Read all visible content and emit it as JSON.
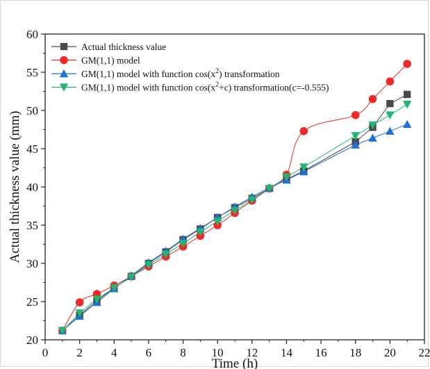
{
  "chart_data": {
    "type": "line",
    "xlabel": "Time (h)",
    "ylabel": "Actual thickness value (mm)",
    "xlim": [
      0,
      22
    ],
    "ylim": [
      20,
      60
    ],
    "xticks": [
      "0",
      "2",
      "4",
      "6",
      "8",
      "10",
      "12",
      "14",
      "16",
      "18",
      "20",
      "22"
    ],
    "yticks": [
      "20",
      "25",
      "30",
      "35",
      "40",
      "45",
      "50",
      "55",
      "60"
    ],
    "legend_position": "top-left",
    "grid": false,
    "series": [
      {
        "name": "Actual thickness value",
        "marker": "square",
        "color": "#4a4a4a",
        "smooth": false,
        "x": [
          1,
          2,
          3,
          4,
          5,
          6,
          7,
          8,
          9,
          10,
          11,
          12,
          13,
          14,
          15,
          18,
          19,
          20,
          21
        ],
        "y": [
          21.2,
          23.2,
          25.1,
          26.8,
          28.3,
          30.0,
          31.5,
          33.1,
          34.5,
          36.0,
          37.3,
          38.5,
          39.8,
          41.0,
          42.1,
          45.9,
          47.8,
          50.9,
          52.1
        ]
      },
      {
        "name": "GM(1,1) model",
        "marker": "circle",
        "color": "#f02828",
        "smooth": true,
        "x": [
          1,
          2,
          3,
          4,
          5,
          6,
          7,
          8,
          9,
          10,
          11,
          12,
          13,
          14,
          15,
          18,
          19,
          20,
          21
        ],
        "y": [
          21.2,
          24.9,
          26.0,
          27.1,
          28.3,
          29.6,
          30.9,
          32.2,
          33.6,
          35.0,
          36.6,
          38.2,
          39.8,
          41.6,
          47.3,
          49.4,
          51.5,
          53.8,
          56.1
        ]
      },
      {
        "name": "GM(1,1) model with function cos(x²) transformation",
        "legend_main": "GM(1,1) model with function cos(x",
        "legend_sup": "2",
        "legend_tail": ") transformation",
        "marker": "triangle-up",
        "color": "#1f6fd6",
        "smooth": false,
        "x": [
          1,
          2,
          3,
          4,
          5,
          6,
          7,
          8,
          9,
          10,
          11,
          12,
          13,
          14,
          15,
          18,
          19,
          20,
          21
        ],
        "y": [
          21.2,
          23.1,
          24.9,
          26.7,
          28.4,
          30.1,
          31.6,
          33.2,
          34.6,
          36.0,
          37.4,
          38.7,
          39.9,
          40.9,
          42.0,
          45.5,
          46.4,
          47.3,
          48.2
        ]
      },
      {
        "name": "GM(1,1) model with function cos(x²+c) transformation(c=-0.555)",
        "legend_main": "GM(1,1) model with function cos(x",
        "legend_sup": "2",
        "legend_tail": "+c) transformation(c=-0.555)",
        "marker": "triangle-down",
        "color": "#22b673",
        "smooth": false,
        "x": [
          1,
          2,
          3,
          4,
          5,
          6,
          7,
          8,
          9,
          10,
          11,
          12,
          13,
          14,
          15,
          18,
          19,
          20,
          21
        ],
        "y": [
          21.2,
          23.5,
          25.3,
          26.8,
          28.2,
          29.8,
          31.2,
          32.6,
          34.1,
          35.5,
          36.9,
          38.3,
          39.8,
          41.3,
          42.6,
          46.7,
          48.1,
          49.4,
          50.8
        ]
      }
    ]
  }
}
